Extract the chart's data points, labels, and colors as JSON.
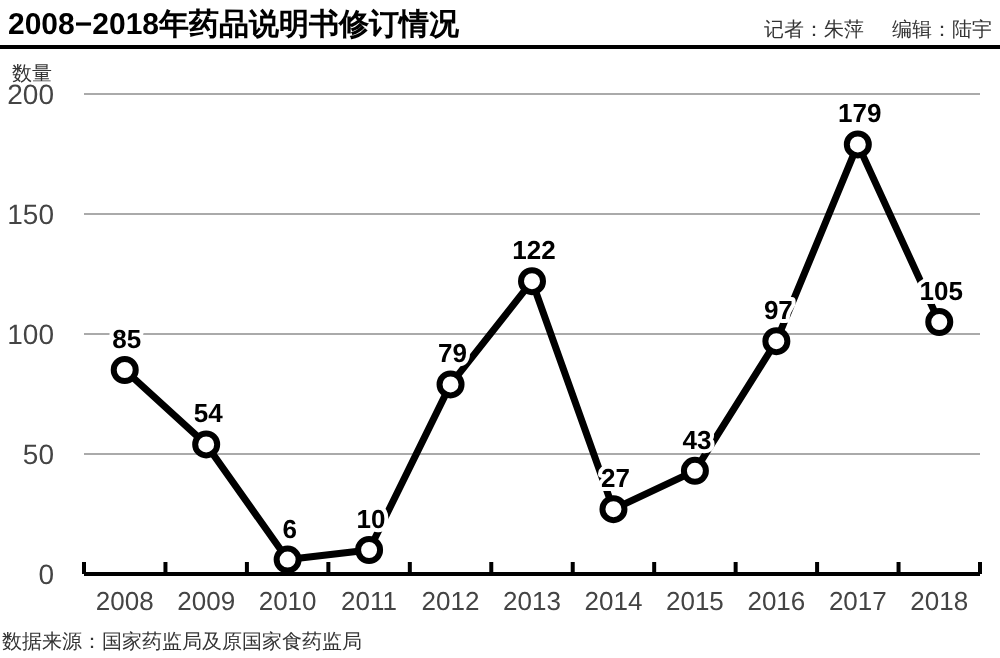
{
  "chart_data": {
    "type": "line",
    "title": "2008−2018年药品说明书修订情况",
    "ylabel": "数量",
    "annotations": [
      "记者：朱萍",
      "编辑：陆宇",
      "数据来源：国家药监局及原国家食药监局"
    ],
    "categories": [
      "2008",
      "2009",
      "2010",
      "2011",
      "2012",
      "2013",
      "2014",
      "2015",
      "2016",
      "2017",
      "2018"
    ],
    "values": [
      85,
      54,
      6,
      10,
      79,
      122,
      27,
      43,
      97,
      179,
      105
    ],
    "color": "#000000",
    "ylim": [
      0,
      200
    ],
    "yticks": [
      0,
      50,
      100,
      150,
      200
    ],
    "grid": "y",
    "marker": "circle",
    "line_style": "solid",
    "data_labels": true
  }
}
